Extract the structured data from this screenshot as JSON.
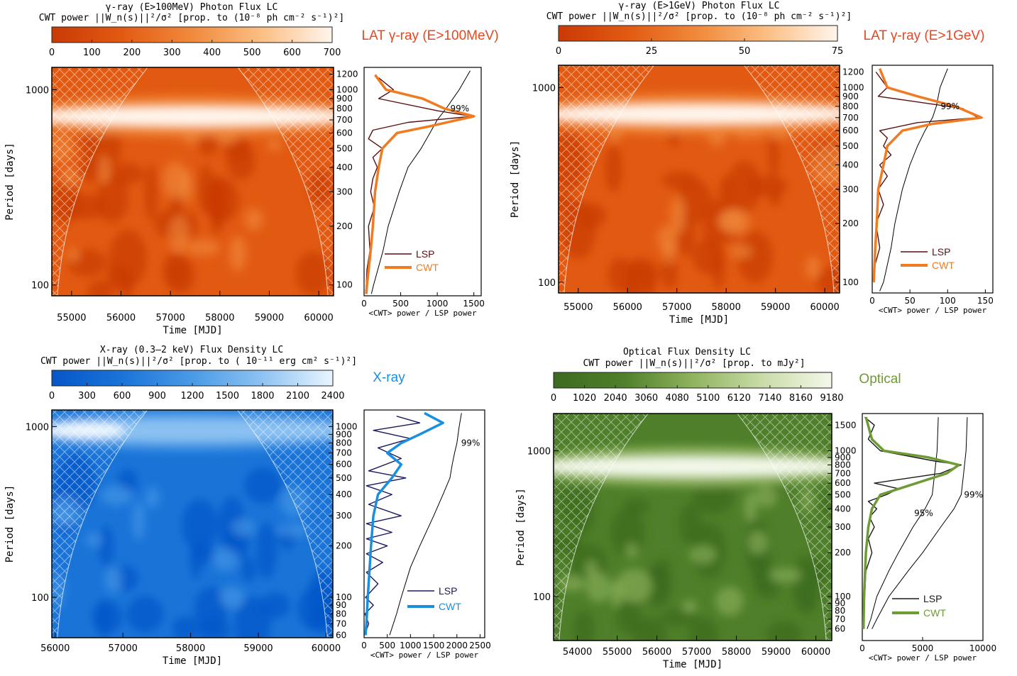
{
  "chart_data": [
    {
      "type": "heatmap",
      "title": "γ-ray (E>100MeV) Photon Flux LC",
      "colorbar_label": "CWT power ||W_n(s)||²/σ²  [prop. to (10⁻⁸ ph cm⁻² s⁻¹)²]",
      "band_label": "LAT γ-ray (E>100MeV)",
      "band_color": "#e8461f",
      "colormap": [
        "#c93a05",
        "#e25a12",
        "#f08a3c",
        "#fbbf85",
        "#fff5ec"
      ],
      "colorbar_ticks": [
        "0",
        "100",
        "200",
        "300",
        "400",
        "500",
        "600",
        "700"
      ],
      "xlabel": "Time [MJD]",
      "ylabel": "Period [days]",
      "x_ticks": [
        "55000",
        "56000",
        "57000",
        "58000",
        "59000",
        "60000"
      ],
      "xlim": [
        54600,
        60300
      ],
      "ylim": [
        88,
        1300
      ],
      "y_ticks_left": [
        100,
        1000
      ],
      "period_ticks": [
        100,
        200,
        300,
        400,
        500,
        600,
        700,
        800,
        900,
        1000,
        1200
      ],
      "peak_period": 730,
      "side_xlabel": "<CWT> power /  LSP power",
      "side_x_ticks": [
        "0",
        "500",
        "1000",
        "1500"
      ],
      "side_xlim": [
        0,
        1600
      ],
      "significance_label": "99%",
      "legend": [
        "LSP",
        "CWT"
      ],
      "series_colors": [
        "#5a0f0f",
        "#f07b20"
      ],
      "cwt": [
        [
          1190,
          150
        ],
        [
          1000,
          300
        ],
        [
          900,
          800
        ],
        [
          800,
          1100
        ],
        [
          730,
          1500
        ],
        [
          650,
          900
        ],
        [
          600,
          450
        ],
        [
          500,
          250
        ],
        [
          400,
          200
        ],
        [
          300,
          150
        ],
        [
          200,
          120
        ],
        [
          150,
          90
        ],
        [
          100,
          40
        ],
        [
          90,
          30
        ]
      ],
      "lsp": [
        [
          1150,
          200
        ],
        [
          1000,
          400
        ],
        [
          900,
          200
        ],
        [
          780,
          1000
        ],
        [
          730,
          1480
        ],
        [
          680,
          600
        ],
        [
          620,
          120
        ],
        [
          560,
          60
        ],
        [
          500,
          250
        ],
        [
          450,
          120
        ],
        [
          400,
          180
        ],
        [
          350,
          120
        ],
        [
          300,
          90
        ],
        [
          250,
          140
        ],
        [
          200,
          60
        ],
        [
          150,
          80
        ],
        [
          120,
          40
        ],
        [
          100,
          30
        ],
        [
          90,
          20
        ]
      ],
      "sig99": [
        [
          1250,
          1450
        ],
        [
          1000,
          1300
        ],
        [
          800,
          1120
        ],
        [
          700,
          1000
        ],
        [
          600,
          900
        ],
        [
          500,
          780
        ],
        [
          400,
          600
        ],
        [
          300,
          480
        ],
        [
          200,
          330
        ],
        [
          150,
          260
        ],
        [
          100,
          130
        ],
        [
          90,
          100
        ]
      ]
    },
    {
      "type": "heatmap",
      "title": "γ-ray (E>1GeV) Photon Flux LC",
      "colorbar_label": "CWT power ||W_n(s)||²/σ²  [prop. to (10⁻⁸ ph cm⁻² s⁻¹)²]",
      "band_label": "LAT γ-ray (E>1GeV)",
      "band_color": "#e8461f",
      "colormap": [
        "#c93a05",
        "#e25a12",
        "#f08a3c",
        "#fbbf85",
        "#fff5ec"
      ],
      "colorbar_ticks": [
        "0",
        "25",
        "50",
        "75"
      ],
      "xlabel": "Time [MJD]",
      "ylabel": "Period [days]",
      "x_ticks": [
        "55000",
        "56000",
        "57000",
        "58000",
        "59000",
        "60000"
      ],
      "xlim": [
        54600,
        60300
      ],
      "ylim": [
        88,
        1300
      ],
      "y_ticks_left": [
        100,
        1000
      ],
      "period_ticks": [
        100,
        200,
        300,
        400,
        500,
        600,
        700,
        800,
        900,
        1000,
        1200
      ],
      "peak_period": 730,
      "side_xlabel": "<CWT> power /  LSP power",
      "side_x_ticks": [
        "0",
        "50",
        "100",
        "150"
      ],
      "side_xlim": [
        0,
        160
      ],
      "significance_label": "99%",
      "legend": [
        "LSP",
        "CWT"
      ],
      "series_colors": [
        "#5a0f0f",
        "#f07b20"
      ],
      "cwt": [
        [
          1250,
          10
        ],
        [
          1000,
          20
        ],
        [
          900,
          60
        ],
        [
          800,
          110
        ],
        [
          700,
          145
        ],
        [
          650,
          80
        ],
        [
          600,
          40
        ],
        [
          500,
          20
        ],
        [
          400,
          15
        ],
        [
          300,
          8
        ],
        [
          200,
          6
        ],
        [
          150,
          4
        ],
        [
          100,
          2
        ]
      ],
      "lsp": [
        [
          1200,
          5
        ],
        [
          1000,
          20
        ],
        [
          900,
          8
        ],
        [
          780,
          120
        ],
        [
          700,
          140
        ],
        [
          660,
          60
        ],
        [
          600,
          10
        ],
        [
          550,
          20
        ],
        [
          500,
          15
        ],
        [
          450,
          25
        ],
        [
          400,
          10
        ],
        [
          350,
          20
        ],
        [
          300,
          8
        ],
        [
          250,
          15
        ],
        [
          200,
          5
        ],
        [
          150,
          10
        ],
        [
          120,
          3
        ],
        [
          100,
          2
        ]
      ],
      "sig99": [
        [
          1250,
          100
        ],
        [
          1000,
          90
        ],
        [
          800,
          85
        ],
        [
          700,
          80
        ],
        [
          600,
          70
        ],
        [
          500,
          60
        ],
        [
          400,
          50
        ],
        [
          300,
          40
        ],
        [
          200,
          30
        ],
        [
          150,
          25
        ],
        [
          100,
          15
        ],
        [
          90,
          10
        ]
      ]
    },
    {
      "type": "heatmap",
      "title": "X-ray (0.3–2 keV) Flux Density LC",
      "colorbar_label": "CWT power ||W_n(s)||²/σ²  [prop. to ( 10⁻¹¹ erg cm² s⁻¹)²]",
      "band_label": "X-ray",
      "band_color": "#1a8fe0",
      "colormap": [
        "#0656c8",
        "#1a74d8",
        "#4a9ae6",
        "#8ec3f2",
        "#e9f5ff"
      ],
      "colorbar_ticks": [
        "0",
        "300",
        "600",
        "900",
        "1200",
        "1500",
        "1800",
        "2100",
        "2400"
      ],
      "xlabel": "Time [MJD]",
      "ylabel": "Period [days]",
      "x_ticks": [
        "56000",
        "57000",
        "58000",
        "59000",
        "60000"
      ],
      "xlim": [
        55950,
        60100
      ],
      "ylim": [
        58,
        1250
      ],
      "y_ticks_left": [
        100,
        1000
      ],
      "period_ticks": [
        60,
        70,
        80,
        90,
        100,
        200,
        300,
        400,
        500,
        600,
        700,
        800,
        900,
        1000
      ],
      "peak_period": 950,
      "side_xlabel": "<CWT> power /  LSP power",
      "side_x_ticks": [
        "0",
        "500",
        "1000",
        "1500",
        "2000",
        "2500"
      ],
      "side_xlim": [
        0,
        2600
      ],
      "significance_label": "99%",
      "legend": [
        "LSP",
        "CWT"
      ],
      "series_colors": [
        "#1a1a5e",
        "#1a8fe0"
      ],
      "cwt": [
        [
          1200,
          1300
        ],
        [
          1050,
          1700
        ],
        [
          900,
          1200
        ],
        [
          800,
          800
        ],
        [
          700,
          500
        ],
        [
          600,
          800
        ],
        [
          500,
          600
        ],
        [
          400,
          300
        ],
        [
          300,
          200
        ],
        [
          200,
          150
        ],
        [
          100,
          80
        ],
        [
          70,
          50
        ],
        [
          60,
          30
        ]
      ],
      "lsp": [
        [
          1150,
          700
        ],
        [
          1050,
          1200
        ],
        [
          950,
          200
        ],
        [
          850,
          1000
        ],
        [
          750,
          300
        ],
        [
          650,
          800
        ],
        [
          550,
          100
        ],
        [
          500,
          900
        ],
        [
          450,
          50
        ],
        [
          400,
          600
        ],
        [
          350,
          100
        ],
        [
          300,
          800
        ],
        [
          270,
          50
        ],
        [
          240,
          600
        ],
        [
          220,
          50
        ],
        [
          200,
          500
        ],
        [
          180,
          50
        ],
        [
          160,
          400
        ],
        [
          140,
          50
        ],
        [
          120,
          300
        ],
        [
          100,
          30
        ],
        [
          90,
          200
        ],
        [
          80,
          20
        ],
        [
          70,
          100
        ],
        [
          60,
          10
        ]
      ],
      "sig99": [
        [
          1200,
          2100
        ],
        [
          1000,
          2050
        ],
        [
          800,
          2000
        ],
        [
          700,
          1950
        ],
        [
          600,
          1900
        ],
        [
          500,
          1850
        ],
        [
          400,
          1700
        ],
        [
          300,
          1500
        ],
        [
          200,
          1200
        ],
        [
          150,
          1000
        ],
        [
          100,
          800
        ],
        [
          80,
          700
        ],
        [
          60,
          550
        ]
      ]
    },
    {
      "type": "heatmap",
      "title": "Optical Flux Density LC",
      "colorbar_label": "CWT power ||W_n(s)||²/σ²  [prop. to mJy²]",
      "band_label": "Optical",
      "band_color": "#6e9b35",
      "colormap": [
        "#3c6b20",
        "#4f7f2a",
        "#8fb35e",
        "#c9dca8",
        "#f3f8ea"
      ],
      "colorbar_ticks": [
        "0",
        "1020",
        "2040",
        "3060",
        "4080",
        "5100",
        "6120",
        "7140",
        "8160",
        "9180"
      ],
      "xlabel": "Time [MJD]",
      "ylabel": "Period [days]",
      "x_ticks": [
        "54000",
        "55000",
        "56000",
        "57000",
        "58000",
        "59000",
        "60000"
      ],
      "xlim": [
        53400,
        60400
      ],
      "ylim": [
        50,
        1800
      ],
      "y_ticks_left": [
        100,
        1000
      ],
      "period_ticks": [
        60,
        70,
        80,
        90,
        100,
        200,
        300,
        400,
        500,
        600,
        700,
        800,
        900,
        1000,
        1500
      ],
      "peak_period": 780,
      "side_xlabel": "<CWT> power /  LSP power",
      "side_x_ticks": [
        "0",
        "5000",
        "10000"
      ],
      "side_xlim": [
        0,
        10000
      ],
      "significance_labels": [
        "95%",
        "99%"
      ],
      "legend": [
        "LSP",
        "CWT"
      ],
      "series_colors": [
        "#1a1a1a",
        "#6e9b35"
      ],
      "cwt": [
        [
          1700,
          300
        ],
        [
          1200,
          800
        ],
        [
          1000,
          1800
        ],
        [
          900,
          5500
        ],
        [
          800,
          8000
        ],
        [
          700,
          7000
        ],
        [
          600,
          4500
        ],
        [
          500,
          1500
        ],
        [
          400,
          800
        ],
        [
          300,
          500
        ],
        [
          200,
          300
        ],
        [
          100,
          150
        ],
        [
          60,
          100
        ]
      ],
      "lsp": [
        [
          1700,
          200
        ],
        [
          1500,
          1000
        ],
        [
          1200,
          500
        ],
        [
          1000,
          1500
        ],
        [
          850,
          6000
        ],
        [
          800,
          8200
        ],
        [
          700,
          6500
        ],
        [
          600,
          1000
        ],
        [
          550,
          3000
        ],
        [
          500,
          2000
        ],
        [
          450,
          500
        ],
        [
          400,
          1200
        ],
        [
          350,
          600
        ],
        [
          300,
          1000
        ],
        [
          250,
          500
        ],
        [
          200,
          800
        ],
        [
          150,
          300
        ],
        [
          100,
          200
        ],
        [
          60,
          50
        ]
      ],
      "sig95": [
        [
          1700,
          6300
        ],
        [
          1000,
          6200
        ],
        [
          700,
          6000
        ],
        [
          500,
          5800
        ],
        [
          400,
          5200
        ],
        [
          300,
          4200
        ],
        [
          200,
          3000
        ],
        [
          150,
          2200
        ],
        [
          100,
          1200
        ],
        [
          70,
          700
        ],
        [
          60,
          400
        ]
      ],
      "sig99": [
        [
          1700,
          8700
        ],
        [
          1000,
          8600
        ],
        [
          700,
          8400
        ],
        [
          500,
          8200
        ],
        [
          400,
          7600
        ],
        [
          300,
          6500
        ],
        [
          200,
          5000
        ],
        [
          150,
          3800
        ],
        [
          100,
          2200
        ],
        [
          70,
          1200
        ],
        [
          60,
          800
        ]
      ]
    }
  ]
}
